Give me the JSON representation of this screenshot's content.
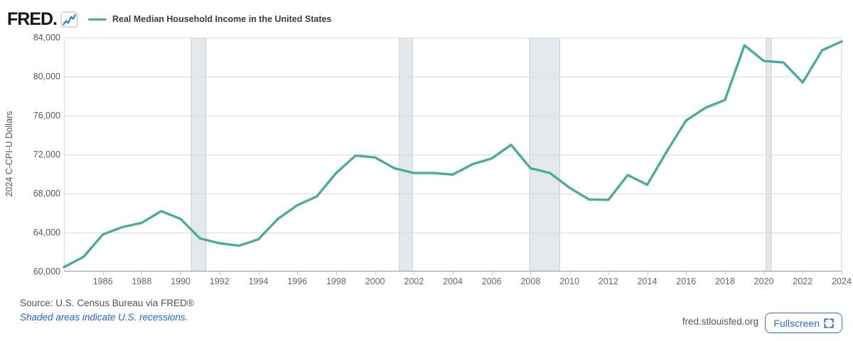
{
  "header": {
    "logo": "FRED.",
    "legend_label": "Real Median Household Income in the United States"
  },
  "footer": {
    "source": "Source: U.S. Census Bureau via FRED®",
    "recession_note": "Shaded areas indicate U.S. recessions.",
    "site": "fred.stlouisfed.org",
    "fullscreen_label": "Fullscreen"
  },
  "colors": {
    "line": "#4DAB9E",
    "recession_fill": "#E3E8ED",
    "recession_edge": "#C7CFD6",
    "gridline": "#DBDBDB",
    "plot_border": "#D9D9D9",
    "axis": "#989898",
    "tick": "#C9C9C9",
    "logo_icon_blue": "#1D7AD9",
    "logo_icon_teal": "#8FD4CA",
    "button_blue": "#2B6FD6"
  },
  "chart_data": {
    "type": "line",
    "title": "Real Median Household Income in the United States",
    "ylabel": "2024 C-CPI-U Dollars",
    "legend_position": "top-left",
    "grid": "horizontal-only",
    "line_color": "#4DAB9E",
    "xlim": [
      1984,
      2024
    ],
    "ylim": [
      60000,
      84000
    ],
    "y_ticks": [
      60000,
      64000,
      68000,
      72000,
      76000,
      80000,
      84000
    ],
    "x_ticks": [
      1986,
      1988,
      1990,
      1992,
      1994,
      1996,
      1998,
      2000,
      2002,
      2004,
      2006,
      2008,
      2010,
      2012,
      2014,
      2016,
      2018,
      2020,
      2022,
      2024
    ],
    "x": [
      1984,
      1985,
      1986,
      1987,
      1988,
      1989,
      1990,
      1991,
      1992,
      1993,
      1994,
      1995,
      1996,
      1997,
      1998,
      1999,
      2000,
      2001,
      2002,
      2003,
      2004,
      2005,
      2006,
      2007,
      2008,
      2009,
      2010,
      2011,
      2012,
      2013,
      2014,
      2015,
      2016,
      2017,
      2018,
      2019,
      2020,
      2021,
      2022,
      2023,
      2024
    ],
    "values": [
      60450,
      61500,
      63800,
      64550,
      65000,
      66200,
      65400,
      63400,
      62900,
      62650,
      63300,
      65400,
      66800,
      67700,
      70100,
      71900,
      71700,
      70600,
      70100,
      70100,
      69950,
      71000,
      71600,
      73000,
      70600,
      70100,
      68600,
      67400,
      67350,
      69900,
      68900,
      72300,
      75500,
      76800,
      77600,
      83200,
      81600,
      81450,
      79400,
      82700,
      83600
    ],
    "recessions": [
      [
        1990.55,
        1991.3
      ],
      [
        2001.25,
        2001.92
      ],
      [
        2007.95,
        2009.5
      ],
      [
        2020.12,
        2020.38
      ]
    ]
  }
}
